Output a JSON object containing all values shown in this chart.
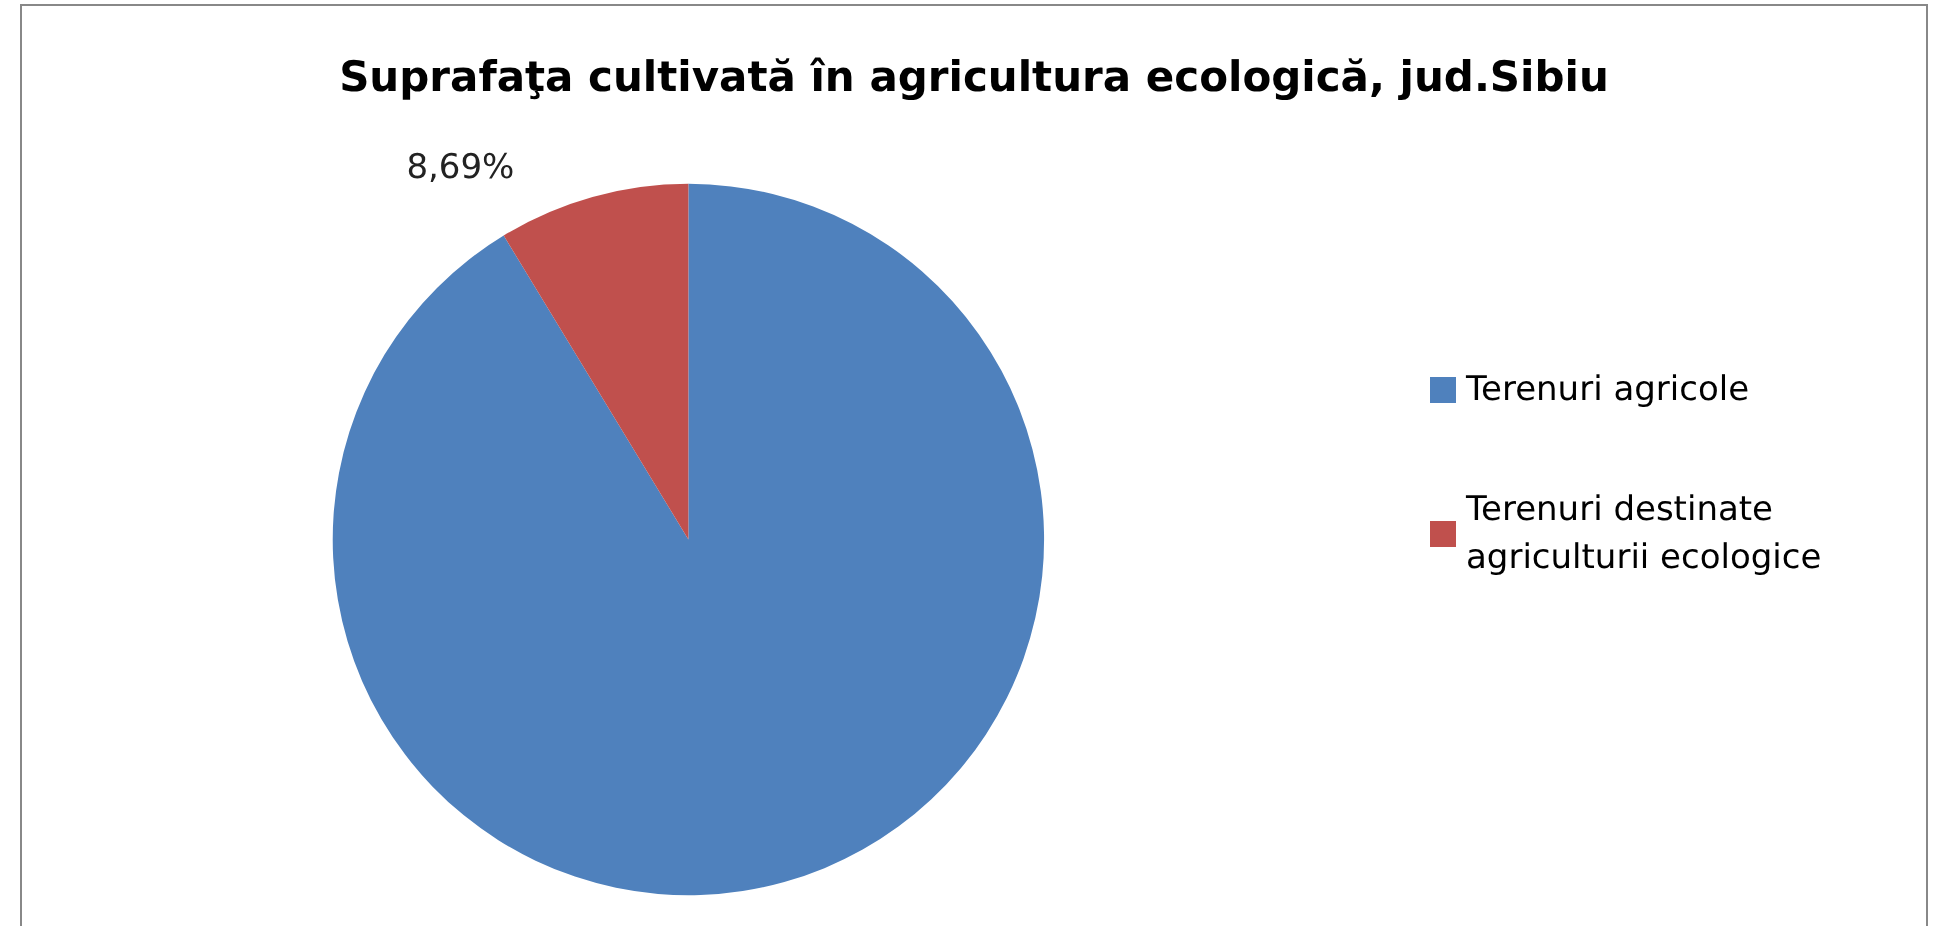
{
  "chart_data": {
    "type": "pie",
    "title": "Suprafaţa cultivată în agricultura ecologică, jud.Sibiu",
    "categories": [
      "Terenuri agricole",
      "Terenuri destinate agriculturii ecologice"
    ],
    "values": [
      91.31,
      8.69
    ],
    "colors": [
      "#4f81bd",
      "#c0504d"
    ],
    "value_labels": [
      null,
      "8,69%"
    ],
    "legend": "right"
  }
}
